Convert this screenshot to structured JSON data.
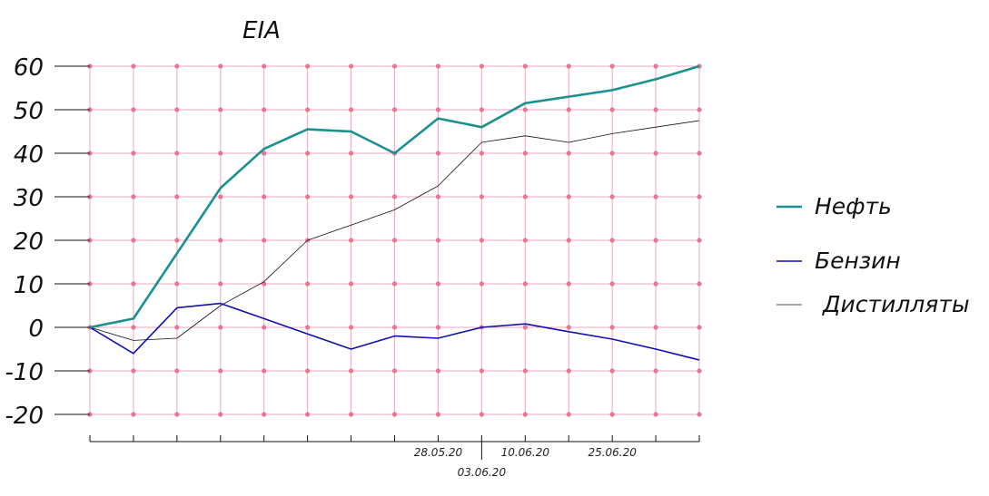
{
  "chart_data": {
    "type": "line",
    "title": "EIA",
    "xlabel": "",
    "ylabel": "",
    "ylim": [
      -20,
      60
    ],
    "yticks": [
      -20,
      -10,
      0,
      10,
      20,
      30,
      40,
      50,
      60
    ],
    "grid": true,
    "legend_position": "right",
    "x_tick_labels": [
      {
        "index": 8,
        "label": "28.05.20"
      },
      {
        "index": 9,
        "label": "03.06.20"
      },
      {
        "index": 10,
        "label": "10.06.20"
      },
      {
        "index": 12,
        "label": "25.06.20"
      }
    ],
    "series": [
      {
        "name": "Нефть",
        "color": "#1a9090",
        "values": [
          0,
          2,
          17,
          32,
          41,
          45.5,
          45,
          40,
          48,
          46,
          51.5,
          53,
          54.5,
          57,
          60
        ]
      },
      {
        "name": "Бензин",
        "color": "#1010b0",
        "values": [
          0,
          -6,
          4.5,
          5.5,
          2,
          -1.5,
          -5,
          -2,
          -2.5,
          0,
          0.8,
          -1,
          -2.7,
          -5,
          -7.5
        ]
      },
      {
        "name": "Дистилляты",
        "color": "#111111",
        "values": [
          0,
          -3,
          -2.5,
          5,
          10.5,
          20,
          23.5,
          27,
          32.5,
          42.5,
          44,
          42.5,
          44.5,
          46,
          47.5
        ]
      }
    ]
  }
}
